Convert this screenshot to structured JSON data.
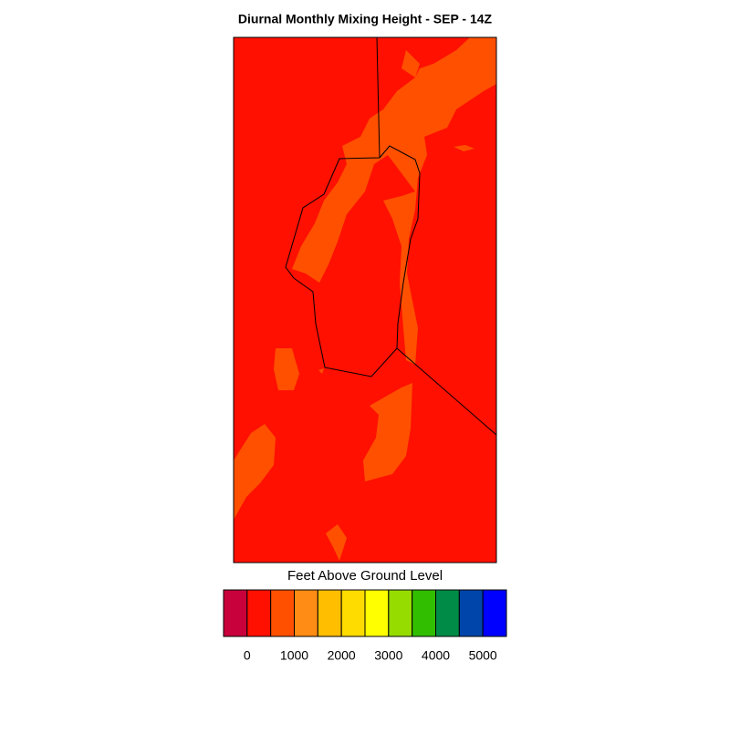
{
  "map": {
    "title": "Diurnal Monthly Mixing Height - SEP - 14Z",
    "colorbar": {
      "label": "Feet Above Ground Level",
      "range": [
        -500,
        5500
      ],
      "colors": [
        "#c8003c",
        "#ff1000",
        "#ff5000",
        "#ff8c14",
        "#ffbe00",
        "#ffdc00",
        "#ffff00",
        "#96dc00",
        "#32be00",
        "#008c46",
        "#0046aa",
        "#0000ff"
      ],
      "ticks": [
        0,
        1000,
        2000,
        3000,
        4000,
        5000
      ]
    }
  }
}
